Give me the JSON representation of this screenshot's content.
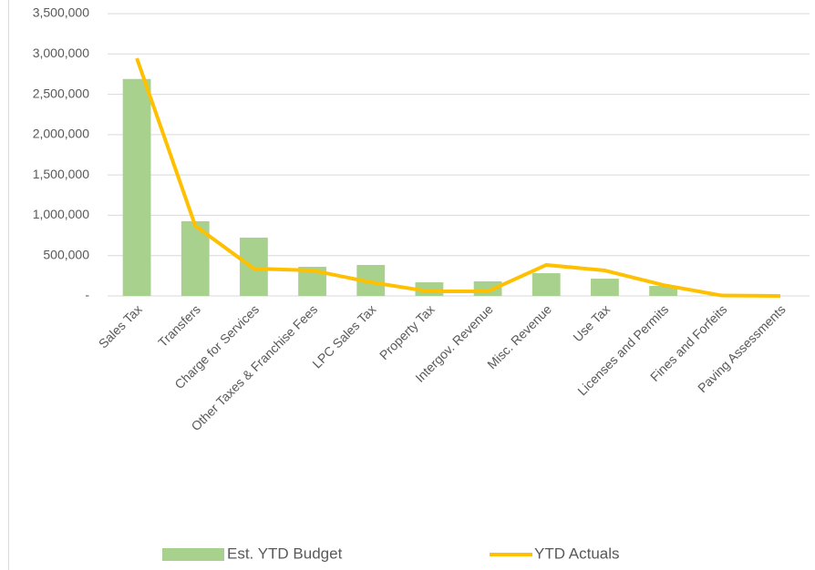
{
  "chart_data": {
    "type": "combo",
    "categories": [
      "Sales Tax",
      "Transfers",
      "Charge for Services",
      "Other Taxes & Franchise Fees",
      "LPC Sales Tax",
      "Property Tax",
      "Intergov. Revenue",
      "Misc. Revenue",
      "Use Tax",
      "Licenses and Permits",
      "Fines and Forfeits",
      "Paving Assessments"
    ],
    "series": [
      {
        "name": "Est. YTD Budget",
        "type": "bar",
        "color": "#a9d18e",
        "values": [
          2690000,
          926000,
          723000,
          361000,
          384000,
          169000,
          181000,
          282000,
          214000,
          124000,
          5000,
          0
        ]
      },
      {
        "name": "YTD Actuals",
        "type": "line",
        "color": "#ffc000",
        "values": [
          2947000,
          869000,
          339000,
          316000,
          169000,
          56000,
          56000,
          384000,
          316000,
          135000,
          5000,
          0
        ]
      }
    ],
    "ylim": [
      0,
      3500000
    ],
    "yticks": [
      {
        "value": 0,
        "label": "-"
      },
      {
        "value": 500000,
        "label": "500,000"
      },
      {
        "value": 1000000,
        "label": "1,000,000"
      },
      {
        "value": 1500000,
        "label": "1,500,000"
      },
      {
        "value": 2000000,
        "label": "2,000,000"
      },
      {
        "value": 2500000,
        "label": "2,500,000"
      },
      {
        "value": 3000000,
        "label": "3,000,000"
      },
      {
        "value": 3500000,
        "label": "3,500,000"
      }
    ],
    "grid": true,
    "legend": "bottom"
  }
}
